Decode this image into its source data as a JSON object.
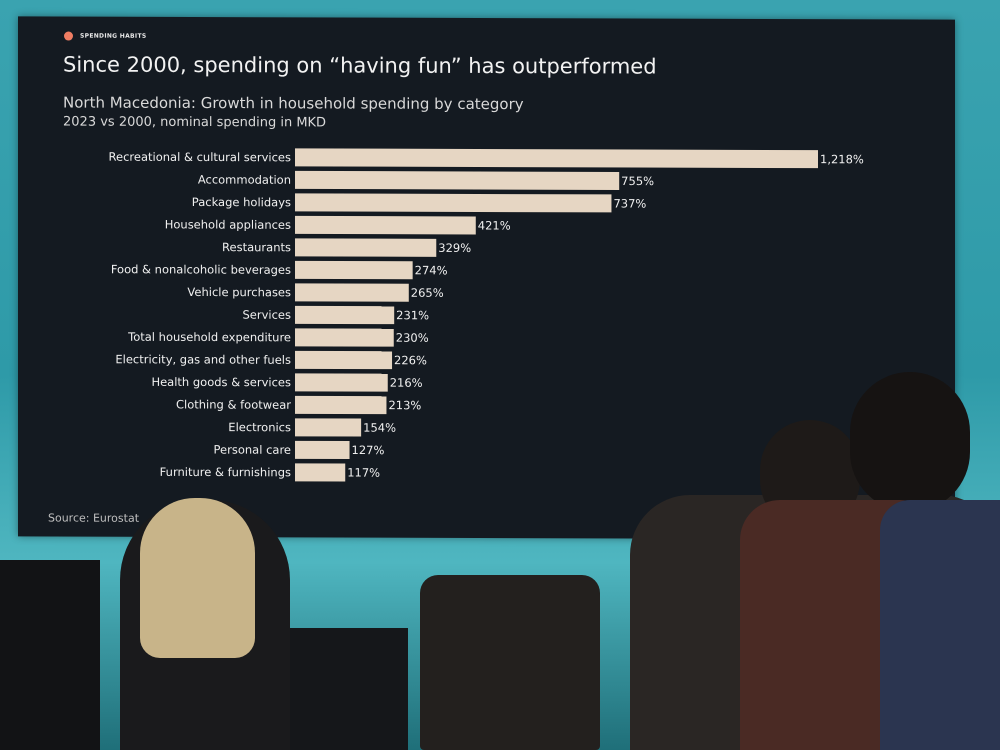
{
  "slide": {
    "tag": "SPENDING HABITS",
    "title": "Since 2000, spending on “having fun” has outperformed",
    "subtitle": "North Macedonia: Growth in household spending by category",
    "subtitle2": "2023 vs 2000, nominal spending in MKD",
    "source": "Source: Eurostat",
    "accent_color": "#ef7d63",
    "bar_color": "#e6d6c3"
  },
  "chart_data": {
    "type": "bar",
    "orientation": "horizontal",
    "title": "North Macedonia: Growth in household spending by category",
    "xlabel": "",
    "ylabel": "",
    "unit": "%",
    "categories": [
      "Recreational & cultural services",
      "Accommodation",
      "Package holidays",
      "Household appliances",
      "Restaurants",
      "Food & nonalcoholic beverages",
      "Vehicle purchases",
      "Services",
      "Total household expenditure",
      "Electricity, gas and other fuels",
      "Health goods & services",
      "Clothing & footwear",
      "Electronics",
      "Personal care",
      "Furniture & furnishings"
    ],
    "values": [
      1218,
      755,
      737,
      421,
      329,
      274,
      265,
      231,
      230,
      226,
      216,
      213,
      154,
      127,
      117
    ],
    "labels": [
      "1,218%",
      "755%",
      "737%",
      "421%",
      "329%",
      "274%",
      "265%",
      "231%",
      "230%",
      "226%",
      "216%",
      "213%",
      "154%",
      "127%",
      "117%"
    ],
    "xlim": [
      0,
      1218
    ],
    "grid": false
  }
}
